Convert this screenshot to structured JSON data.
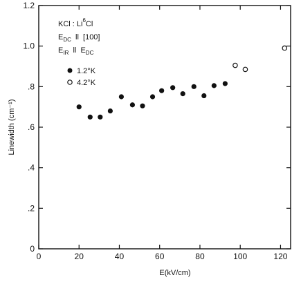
{
  "chart_data": {
    "type": "scatter",
    "xlabel": "E(kV/cm)",
    "ylabel": "Linewidth (cm⁻¹)",
    "xlim": [
      0,
      125
    ],
    "ylim": [
      0,
      1.2
    ],
    "x_ticks": [
      0,
      20,
      40,
      60,
      80,
      100,
      120
    ],
    "y_ticks": [
      0,
      0.2,
      0.4,
      0.6,
      0.8,
      1.0,
      1.2
    ],
    "x_tick_labels": [
      "0",
      "20",
      "40",
      "60",
      "80",
      "100",
      "120"
    ],
    "y_tick_labels": [
      "0",
      ".2",
      ".4",
      ".6",
      ".8",
      "1.0",
      "1.2"
    ],
    "annotations": {
      "line1": {
        "main": "KCl : Li",
        "sup": "6",
        "tail": "Cl"
      },
      "line2": {
        "main": "E",
        "sub": "DC",
        "tail": "  ll  [100]"
      },
      "line3": {
        "main": "E",
        "sub": "IR",
        "mid": "  ll  E",
        "sub2": "DC"
      }
    },
    "legend_placement": "top-left",
    "series": [
      {
        "name": "1.2°K",
        "marker": "filled-circle",
        "x": [
          20,
          25.5,
          30.5,
          35.5,
          41,
          46.5,
          51.5,
          56.5,
          61,
          66.5,
          71.5,
          77,
          82,
          87,
          92.5
        ],
        "y": [
          0.7,
          0.65,
          0.65,
          0.68,
          0.75,
          0.71,
          0.705,
          0.75,
          0.78,
          0.795,
          0.765,
          0.8,
          0.755,
          0.805,
          0.815
        ]
      },
      {
        "name": "4.2°K",
        "marker": "open-circle",
        "x": [
          97.5,
          102.5,
          122
        ],
        "y": [
          0.905,
          0.885,
          0.99
        ]
      }
    ]
  }
}
